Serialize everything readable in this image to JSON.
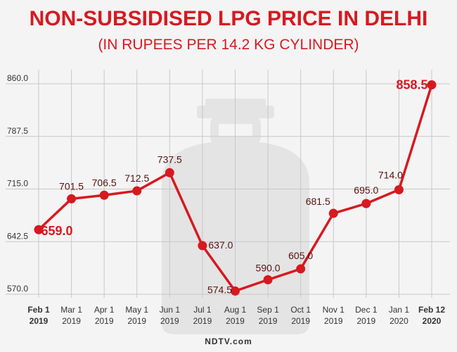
{
  "title": "NON-SUBSIDISED LPG PRICE IN DELHI",
  "subtitle": "(IN RUPEES PER 14.2 KG CYLINDER)",
  "footer": "NDTV.com",
  "colors": {
    "line": "#d71920",
    "grid": "#c8c8c8",
    "label": "#5a1010",
    "axis": "#333333"
  },
  "chart_data": {
    "type": "line",
    "title": "NON-SUBSIDISED LPG PRICE IN DELHI",
    "subtitle": "(IN RUPEES PER 14.2 KG CYLINDER)",
    "categories": [
      [
        "Feb 1",
        "2019"
      ],
      [
        "Mar 1",
        "2019"
      ],
      [
        "Apr 1",
        "2019"
      ],
      [
        "May 1",
        "2019"
      ],
      [
        "Jun 1",
        "2019"
      ],
      [
        "Jul 1",
        "2019"
      ],
      [
        "Aug 1",
        "2019"
      ],
      [
        "Sep 1",
        "2019"
      ],
      [
        "Oct 1",
        "2019"
      ],
      [
        "Nov 1",
        "2019"
      ],
      [
        "Dec 1",
        "2019"
      ],
      [
        "Jan 1",
        "2020"
      ],
      [
        "Feb 12",
        "2020"
      ]
    ],
    "values": [
      659.0,
      701.5,
      706.5,
      712.5,
      737.5,
      637.0,
      574.5,
      590.0,
      605.0,
      681.5,
      695.0,
      714.0,
      858.5
    ],
    "data_labels": [
      "659.0",
      "701.5",
      "706.5",
      "712.5",
      "737.5",
      "637.0",
      "574.5",
      "590.0",
      "605.0",
      "681.5",
      "695.0",
      "714.0",
      "858.5"
    ],
    "highlight_indices": [
      0,
      12
    ],
    "yticks": [
      "570.0",
      "642.5",
      "715.0",
      "787.5",
      "860.0"
    ],
    "ylim": [
      570.0,
      860.0
    ],
    "xlabel": "",
    "ylabel": "",
    "grid": true
  }
}
